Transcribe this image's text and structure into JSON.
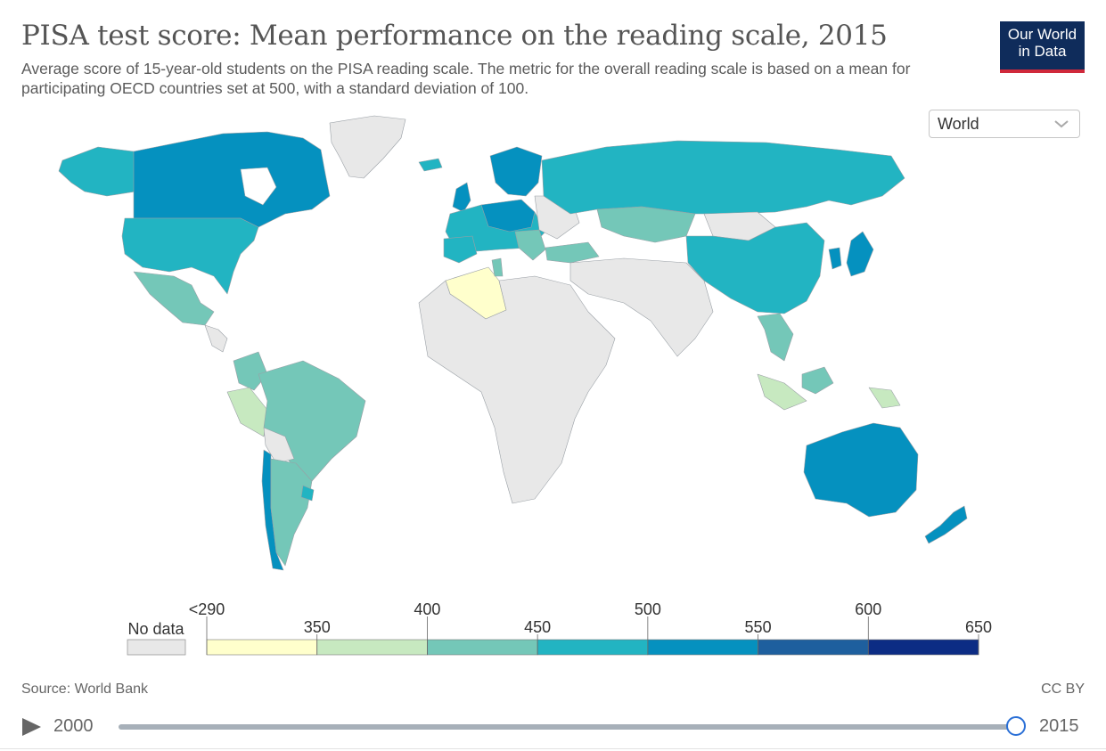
{
  "title": "PISA test score: Mean performance on the reading scale, 2015",
  "subtitle": "Average score of 15-year-old students on the PISA reading scale. The metric for the overall reading scale is based on a mean for participating OECD countries set at 500, with a standard deviation of 100.",
  "logo": {
    "line1": "Our World",
    "line2": "in Data"
  },
  "region_select": {
    "value": "World"
  },
  "legend": {
    "no_data_label": "No data",
    "bins": [
      {
        "from": "<290",
        "to": "350",
        "color": "#ffffcc"
      },
      {
        "from": "350",
        "to": "400",
        "color": "#c7e9c0"
      },
      {
        "from": "400",
        "to": "450",
        "color": "#74c7b8"
      },
      {
        "from": "450",
        "to": "500",
        "color": "#22b4c2"
      },
      {
        "from": "500",
        "to": "550",
        "color": "#0591bf"
      },
      {
        "from": "550",
        "to": "600",
        "color": "#1e5f9e"
      },
      {
        "from": "600",
        "to": "650",
        "color": "#0c2c84"
      }
    ],
    "upper_labels": [
      "<290",
      "400",
      "500",
      "600"
    ],
    "lower_labels": [
      "350",
      "450",
      "550",
      "650"
    ],
    "no_data_color": "#e8e8e8"
  },
  "map_colors": {
    "no_data": "#e8e8e8",
    "c350_400": "#c7e9c0",
    "c400_450": "#74c7b8",
    "c450_500": "#22b4c2",
    "c500_550": "#0591bf",
    "c_low": "#ffffcc",
    "ocean": "#ffffff"
  },
  "footer": {
    "source": "Source: World Bank",
    "license": "CC BY"
  },
  "timeline": {
    "start": "2000",
    "end": "2015",
    "selected": "2015"
  }
}
